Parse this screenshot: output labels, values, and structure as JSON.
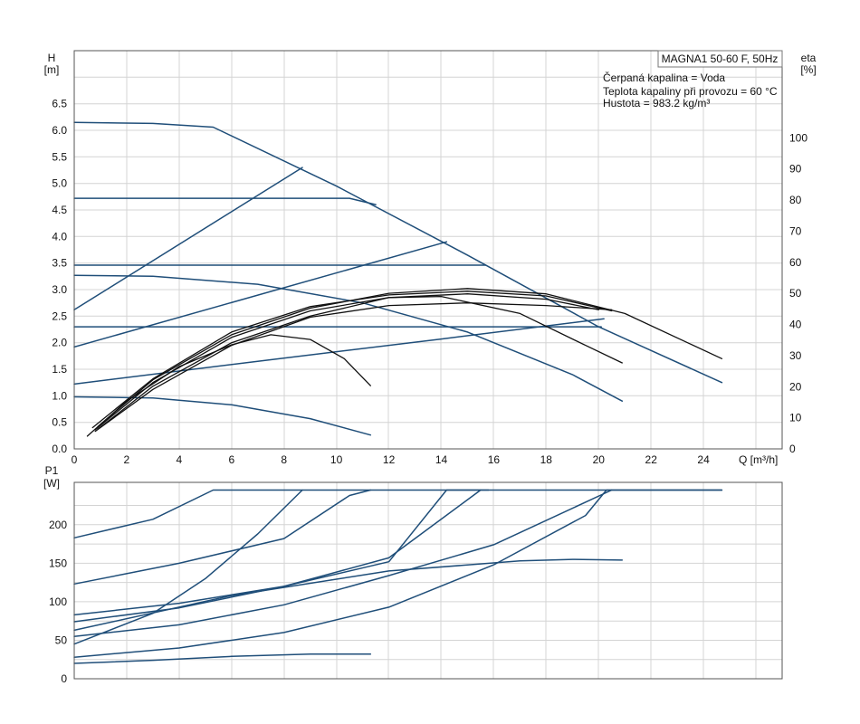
{
  "colors": {
    "system": "#1f4e79",
    "efficiency": "#111111",
    "grid": "#d4d4d4",
    "frame": "#555555"
  },
  "chart_data": [
    {
      "id": "hq",
      "type": "line",
      "title": "MAGNA1 50-60 F, 50Hz",
      "info": [
        "Čerpaná kapalina = Voda",
        "Teplota kapaliny při provozu = 60 °C",
        "Hustota = 983.2 kg/m³"
      ],
      "xlabel": "Q [m³/h]",
      "ylabel": [
        "H",
        "[m]"
      ],
      "y2label": [
        "eta",
        "[%]"
      ],
      "xlim": [
        0,
        27
      ],
      "ylim": [
        0,
        7.5
      ],
      "y2lim": [
        0,
        128
      ],
      "xticks": [
        "0",
        "2",
        "4",
        "6",
        "8",
        "10",
        "12",
        "14",
        "16",
        "18",
        "20",
        "22",
        "24"
      ],
      "yticks": [
        "0.0",
        "0.5",
        "1.0",
        "1.5",
        "2.0",
        "2.5",
        "3.0",
        "3.5",
        "4.0",
        "4.5",
        "5.0",
        "5.5",
        "6.0",
        "6.5"
      ],
      "y2ticks": [
        "0",
        "10",
        "20",
        "30",
        "40",
        "50",
        "60",
        "70",
        "80",
        "90",
        "100"
      ],
      "grid": true,
      "series": [
        {
          "color": "system",
          "points": [
            [
              0,
              6.15
            ],
            [
              3,
              6.13
            ],
            [
              5.3,
              6.06
            ],
            [
              10,
              4.95
            ],
            [
              15,
              3.65
            ],
            [
              20,
              2.3
            ],
            [
              24.7,
              1.25
            ]
          ]
        },
        {
          "color": "system",
          "points": [
            [
              0,
              4.72
            ],
            [
              10.5,
              4.72
            ],
            [
              11.5,
              4.6
            ]
          ]
        },
        {
          "color": "system",
          "points": [
            [
              0,
              3.46
            ],
            [
              15.7,
              3.46
            ]
          ]
        },
        {
          "color": "system",
          "points": [
            [
              0,
              2.3
            ],
            [
              20.1,
              2.3
            ]
          ]
        },
        {
          "color": "system",
          "points": [
            [
              0,
              3.27
            ],
            [
              3,
              3.25
            ],
            [
              7,
              3.1
            ],
            [
              11,
              2.75
            ],
            [
              15,
              2.2
            ],
            [
              19,
              1.4
            ],
            [
              20.9,
              0.9
            ]
          ]
        },
        {
          "color": "system",
          "points": [
            [
              0,
              0.98
            ],
            [
              3,
              0.96
            ],
            [
              6,
              0.83
            ],
            [
              9,
              0.57
            ],
            [
              11.3,
              0.26
            ]
          ]
        },
        {
          "color": "system",
          "points": [
            [
              0,
              2.62
            ],
            [
              8.7,
              5.3
            ]
          ]
        },
        {
          "color": "system",
          "points": [
            [
              0,
              1.92
            ],
            [
              14.2,
              3.9
            ]
          ]
        },
        {
          "color": "system",
          "points": [
            [
              0,
              1.22
            ],
            [
              7,
              1.65
            ],
            [
              14,
              2.07
            ],
            [
              20.2,
              2.45
            ]
          ]
        },
        {
          "color": "efficiency",
          "points": [
            [
              0.5,
              0.24
            ],
            [
              2,
              0.9
            ],
            [
              4,
              1.55
            ],
            [
              6,
              1.96
            ],
            [
              7.5,
              2.15
            ],
            [
              9,
              2.06
            ],
            [
              10.3,
              1.7
            ],
            [
              11.3,
              1.19
            ]
          ]
        },
        {
          "color": "efficiency",
          "points": [
            [
              0.9,
              0.37
            ],
            [
              3,
              1.18
            ],
            [
              6,
              2.0
            ],
            [
              9,
              2.5
            ],
            [
              12,
              2.85
            ],
            [
              14,
              2.87
            ],
            [
              17,
              2.55
            ],
            [
              19.5,
              1.95
            ],
            [
              20.9,
              1.62
            ]
          ]
        },
        {
          "color": "efficiency",
          "points": [
            [
              0.8,
              0.36
            ],
            [
              3,
              1.25
            ],
            [
              6,
              2.1
            ],
            [
              9,
              2.6
            ],
            [
              12,
              2.85
            ],
            [
              15,
              2.92
            ],
            [
              18,
              2.82
            ],
            [
              20,
              2.62
            ]
          ]
        },
        {
          "color": "efficiency",
          "points": [
            [
              0.7,
              0.4
            ],
            [
              3,
              1.32
            ],
            [
              6,
              2.2
            ],
            [
              9,
              2.68
            ],
            [
              12,
              2.9
            ],
            [
              15,
              2.97
            ],
            [
              18,
              2.88
            ],
            [
              20.5,
              2.6
            ]
          ]
        },
        {
          "color": "efficiency",
          "points": [
            [
              0.8,
              0.33
            ],
            [
              3,
              1.12
            ],
            [
              6,
              1.95
            ],
            [
              9,
              2.48
            ],
            [
              12,
              2.7
            ],
            [
              15,
              2.75
            ],
            [
              18,
              2.7
            ],
            [
              20.5,
              2.62
            ]
          ]
        },
        {
          "color": "efficiency",
          "points": [
            [
              0.9,
              0.42
            ],
            [
              3,
              1.3
            ],
            [
              6,
              2.15
            ],
            [
              9,
              2.65
            ],
            [
              12,
              2.93
            ],
            [
              15,
              3.02
            ],
            [
              18,
              2.92
            ],
            [
              21,
              2.55
            ],
            [
              24.7,
              1.7
            ]
          ]
        }
      ]
    },
    {
      "id": "p1",
      "type": "line",
      "ylabel": [
        "P1",
        "[W]"
      ],
      "xlim": [
        0,
        27
      ],
      "ylim": [
        0,
        255
      ],
      "yticks": [
        "0",
        "50",
        "100",
        "150",
        "200"
      ],
      "grid": true,
      "series": [
        {
          "color": "system",
          "points": [
            [
              0,
              183
            ],
            [
              3,
              207
            ],
            [
              5.3,
              245
            ],
            [
              24.7,
              245
            ]
          ]
        },
        {
          "color": "system",
          "points": [
            [
              0,
              123
            ],
            [
              4,
              150
            ],
            [
              8,
              182
            ],
            [
              10.5,
              238
            ],
            [
              11.3,
              245
            ]
          ]
        },
        {
          "color": "system",
          "points": [
            [
              0,
              83
            ],
            [
              4,
              98
            ],
            [
              8,
              120
            ],
            [
              12,
              152
            ],
            [
              14.2,
              245
            ],
            [
              15.8,
              245
            ]
          ]
        },
        {
          "color": "system",
          "points": [
            [
              0,
              74
            ],
            [
              4,
              92
            ],
            [
              8,
              120
            ],
            [
              12,
              157
            ],
            [
              15.5,
              245
            ]
          ]
        },
        {
          "color": "system",
          "points": [
            [
              0,
              45
            ],
            [
              3,
              85
            ],
            [
              5,
              130
            ],
            [
              7,
              188
            ],
            [
              8.7,
              245
            ]
          ]
        },
        {
          "color": "system",
          "points": [
            [
              0,
              55
            ],
            [
              4,
              70
            ],
            [
              8,
              96
            ],
            [
              12,
              134
            ],
            [
              16,
              174
            ],
            [
              20.5,
              245
            ]
          ]
        },
        {
          "color": "system",
          "points": [
            [
              0,
              28
            ],
            [
              4,
              40
            ],
            [
              8,
              60
            ],
            [
              12,
              93
            ],
            [
              16,
              148
            ],
            [
              19.5,
              212
            ],
            [
              20.3,
              245
            ],
            [
              24.7,
              245
            ]
          ]
        },
        {
          "color": "system",
          "points": [
            [
              0,
              63
            ],
            [
              6,
              108
            ],
            [
              12,
              140
            ],
            [
              17,
              153
            ],
            [
              19,
              155
            ],
            [
              20.9,
              154
            ]
          ]
        },
        {
          "color": "system",
          "points": [
            [
              0,
              20
            ],
            [
              3,
              24
            ],
            [
              6,
              29
            ],
            [
              9,
              32
            ],
            [
              11.3,
              32
            ]
          ]
        }
      ]
    }
  ]
}
